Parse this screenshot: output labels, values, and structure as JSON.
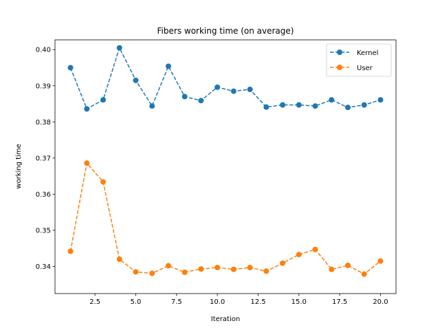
{
  "chart_data": {
    "type": "line",
    "title": "Fibers working time (on average)",
    "xlabel": "Iteration",
    "ylabel": "working time",
    "xlim": [
      0.05,
      20.95
    ],
    "ylim": [
      0.3325,
      0.4027
    ],
    "x_ticks": [
      2.5,
      5.0,
      7.5,
      10.0,
      12.5,
      15.0,
      17.5,
      20.0
    ],
    "x_tick_labels": [
      "2.5",
      "5.0",
      "7.5",
      "10.0",
      "12.5",
      "15.0",
      "17.5",
      "20.0"
    ],
    "y_ticks": [
      0.34,
      0.35,
      0.36,
      0.37,
      0.38,
      0.39,
      0.4
    ],
    "y_tick_labels": [
      "0.34",
      "0.35",
      "0.36",
      "0.37",
      "0.38",
      "0.39",
      "0.40"
    ],
    "legend_position": "top-right",
    "grid": false,
    "x": [
      1,
      2,
      3,
      4,
      5,
      6,
      7,
      8,
      9,
      10,
      11,
      12,
      13,
      14,
      15,
      16,
      17,
      18,
      19,
      20
    ],
    "series": [
      {
        "name": "Kernel",
        "color": "#1f77b4",
        "values": [
          0.395,
          0.3836,
          0.3861,
          0.4005,
          0.3915,
          0.3844,
          0.3954,
          0.387,
          0.3859,
          0.3896,
          0.3885,
          0.389,
          0.3841,
          0.3847,
          0.3847,
          0.3844,
          0.3861,
          0.384,
          0.3847,
          0.3861
        ]
      },
      {
        "name": "User",
        "color": "#ff7f0e",
        "values": [
          0.3442,
          0.3686,
          0.3634,
          0.342,
          0.3385,
          0.3381,
          0.3402,
          0.3384,
          0.3393,
          0.3397,
          0.3392,
          0.3397,
          0.3387,
          0.3409,
          0.3433,
          0.3447,
          0.3392,
          0.3403,
          0.3379,
          0.3415
        ]
      }
    ]
  }
}
